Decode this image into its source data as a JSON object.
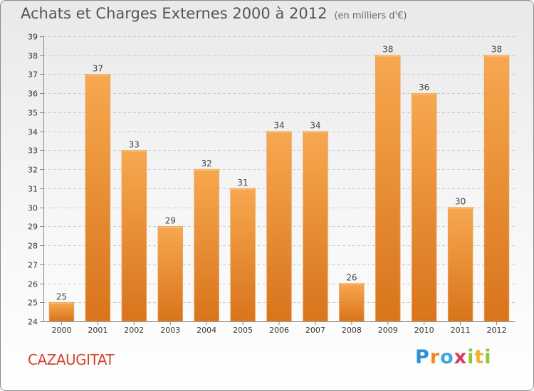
{
  "header": {
    "title": "Achats et Charges Externes 2000 à 2012",
    "subtitle": "(en milliers d'€)"
  },
  "footer": {
    "place": "CAZAUGITAT",
    "logo": [
      "P",
      "r",
      "o",
      "x",
      "i",
      "t",
      "i"
    ]
  },
  "chart_data": {
    "type": "bar",
    "title": "Achats et Charges Externes 2000 à 2012",
    "subtitle": "(en milliers d'€)",
    "xlabel": "",
    "ylabel": "",
    "categories": [
      "2000",
      "2001",
      "2002",
      "2003",
      "2004",
      "2005",
      "2006",
      "2007",
      "2008",
      "2009",
      "2010",
      "2011",
      "2012"
    ],
    "values": [
      25,
      37,
      33,
      29,
      32,
      31,
      34,
      34,
      26,
      38,
      36,
      30,
      38
    ],
    "ylim": [
      24,
      39
    ],
    "yticks": [
      24,
      25,
      26,
      27,
      28,
      29,
      30,
      31,
      32,
      33,
      34,
      35,
      36,
      37,
      38,
      39
    ],
    "grid": true,
    "legend": "none",
    "bar_color": "#f0932f",
    "bar_color_light": "#f7a84f",
    "bar_color_dark": "#d8741c"
  }
}
